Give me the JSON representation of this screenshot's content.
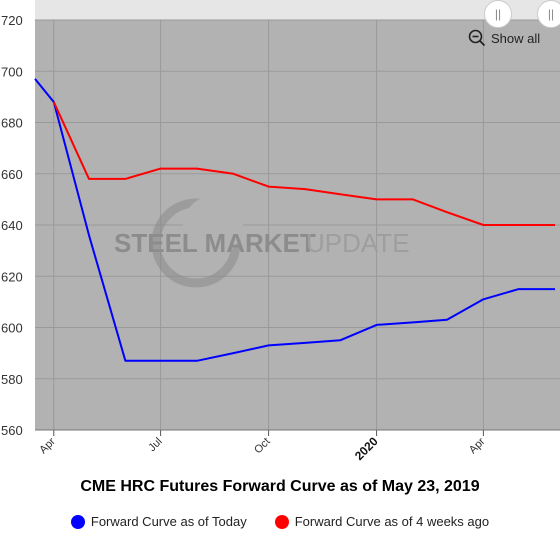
{
  "chart_data": {
    "type": "line",
    "title": "CME HRC Futures Forward Curve as of May 23, 2019",
    "xlabel": "",
    "ylabel": "",
    "ylim": [
      560,
      720
    ],
    "yticks": [
      560,
      580,
      600,
      620,
      640,
      660,
      680,
      700,
      720
    ],
    "x_range": [
      "2019-03-16",
      "2020-06-01"
    ],
    "xticks": [
      {
        "date": "2019-04-01",
        "label": "Apr",
        "major": false
      },
      {
        "date": "2019-07-01",
        "label": "Jul",
        "major": false
      },
      {
        "date": "2019-10-01",
        "label": "Oct",
        "major": false
      },
      {
        "date": "2020-01-01",
        "label": "2020",
        "major": true
      },
      {
        "date": "2020-04-01",
        "label": "Apr",
        "major": false
      }
    ],
    "grid": true,
    "legend_position": "bottom",
    "series": [
      {
        "name": "Forward Curve as of Today",
        "color": "#0000ff",
        "points": [
          {
            "x": "2019-03-16",
            "y": 697
          },
          {
            "x": "2019-04-01",
            "y": 688
          },
          {
            "x": "2019-05-01",
            "y": 636
          },
          {
            "x": "2019-06-01",
            "y": 587
          },
          {
            "x": "2019-07-01",
            "y": 587
          },
          {
            "x": "2019-08-01",
            "y": 587
          },
          {
            "x": "2019-09-01",
            "y": 590
          },
          {
            "x": "2019-10-01",
            "y": 593
          },
          {
            "x": "2019-11-01",
            "y": 594
          },
          {
            "x": "2019-12-01",
            "y": 595
          },
          {
            "x": "2020-01-01",
            "y": 601
          },
          {
            "x": "2020-02-01",
            "y": 602
          },
          {
            "x": "2020-03-01",
            "y": 603
          },
          {
            "x": "2020-04-01",
            "y": 611
          },
          {
            "x": "2020-05-01",
            "y": 615
          },
          {
            "x": "2020-06-01",
            "y": 615
          }
        ]
      },
      {
        "name": "Forward Curve as of 4 weeks ago",
        "color": "#ff0000",
        "points": [
          {
            "x": "2019-04-01",
            "y": 688
          },
          {
            "x": "2019-05-01",
            "y": 658
          },
          {
            "x": "2019-06-01",
            "y": 658
          },
          {
            "x": "2019-07-01",
            "y": 662
          },
          {
            "x": "2019-08-01",
            "y": 662
          },
          {
            "x": "2019-09-01",
            "y": 660
          },
          {
            "x": "2019-10-01",
            "y": 655
          },
          {
            "x": "2019-11-01",
            "y": 654
          },
          {
            "x": "2019-12-01",
            "y": 652
          },
          {
            "x": "2020-01-01",
            "y": 650
          },
          {
            "x": "2020-02-01",
            "y": 650
          },
          {
            "x": "2020-03-01",
            "y": 645
          },
          {
            "x": "2020-04-01",
            "y": 640
          },
          {
            "x": "2020-05-01",
            "y": 640
          },
          {
            "x": "2020-06-01",
            "y": 640
          }
        ]
      }
    ]
  },
  "watermark": {
    "bold": "STEEL MARKET",
    "light": "UPDATE"
  },
  "controls": {
    "show_all_label": "Show all",
    "zoom_icon": "zoom-out-icon",
    "handle_icon": "range-handle-icon"
  },
  "colors": {
    "plot_background": "#b2b2b2",
    "grid": "#999999",
    "navigator_bar": "#e6e6e6"
  }
}
